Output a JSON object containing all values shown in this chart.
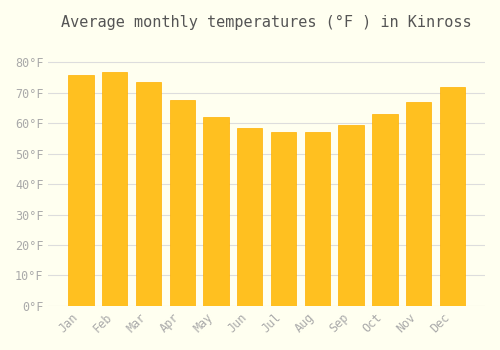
{
  "title": "Average monthly temperatures (°F ) in Kinross",
  "months": [
    "Jan",
    "Feb",
    "Mar",
    "Apr",
    "May",
    "Jun",
    "Jul",
    "Aug",
    "Sep",
    "Oct",
    "Nov",
    "Dec"
  ],
  "values": [
    76,
    77,
    73.5,
    67.5,
    62,
    58.5,
    57,
    57,
    59.5,
    63,
    67,
    72
  ],
  "bar_color_face": "#FFC020",
  "bar_color_edge": "#FFB000",
  "background_color": "#FFFFF0",
  "grid_color": "#DDDDDD",
  "tick_color": "#AAAAAA",
  "title_color": "#555555",
  "ylim": [
    0,
    88
  ],
  "yticks": [
    0,
    10,
    20,
    30,
    40,
    50,
    60,
    70,
    80
  ],
  "ytick_labels": [
    "0°F",
    "10°F",
    "20°F",
    "30°F",
    "40°F",
    "50°F",
    "60°F",
    "70°F",
    "80°F"
  ],
  "font_family": "monospace",
  "title_fontsize": 11,
  "tick_fontsize": 8.5
}
